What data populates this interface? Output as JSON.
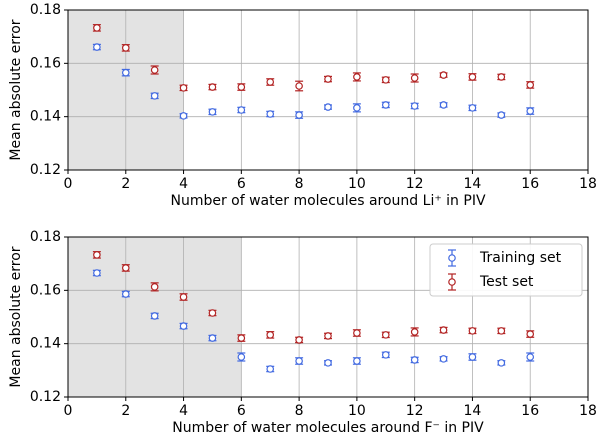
{
  "charts": [
    {
      "type": "scatter",
      "xlabel": "Number of water molecules around Li⁺ in PIV",
      "ylabel": "Mean absolute error",
      "xlim": [
        0,
        18
      ],
      "xticks": [
        0,
        2,
        4,
        6,
        8,
        10,
        12,
        14,
        16,
        18
      ],
      "ylim": [
        0.12,
        0.18
      ],
      "yticks": [
        0.12,
        0.14,
        0.16,
        0.18
      ],
      "grid": true,
      "shaded_xlim": [
        0,
        4
      ],
      "shade_color": "#e3e3e3",
      "x": [
        1,
        2,
        3,
        4,
        5,
        6,
        7,
        8,
        9,
        10,
        11,
        12,
        13,
        14,
        15,
        16
      ],
      "series": [
        {
          "color": "#4169e1",
          "values": [
            0.1661,
            0.1565,
            0.1478,
            0.1403,
            0.1418,
            0.1425,
            0.141,
            0.1406,
            0.1436,
            0.1433,
            0.1444,
            0.144,
            0.1444,
            0.1433,
            0.1406,
            0.1421
          ],
          "errors": [
            0.001,
            0.0012,
            0.001,
            0.0008,
            0.001,
            0.001,
            0.001,
            0.0012,
            0.0008,
            0.0015,
            0.001,
            0.001,
            0.0008,
            0.001,
            0.0008,
            0.0012
          ]
        },
        {
          "color": "#b22222",
          "values": [
            0.1733,
            0.1658,
            0.1575,
            0.1508,
            0.1511,
            0.1511,
            0.153,
            0.1515,
            0.1541,
            0.1549,
            0.1538,
            0.1545,
            0.1556,
            0.1549,
            0.1549,
            0.1519
          ],
          "errors": [
            0.0012,
            0.0012,
            0.0015,
            0.001,
            0.001,
            0.0012,
            0.0012,
            0.0018,
            0.001,
            0.0015,
            0.001,
            0.0015,
            0.0008,
            0.0012,
            0.001,
            0.0012
          ]
        }
      ]
    },
    {
      "type": "scatter",
      "xlabel": "Number of water molecules around F⁻ in PIV",
      "ylabel": "Mean absolute error",
      "xlim": [
        0,
        18
      ],
      "xticks": [
        0,
        2,
        4,
        6,
        8,
        10,
        12,
        14,
        16,
        18
      ],
      "ylim": [
        0.12,
        0.18
      ],
      "yticks": [
        0.12,
        0.14,
        0.16,
        0.18
      ],
      "grid": true,
      "shaded_xlim": [
        0,
        6
      ],
      "shade_color": "#e3e3e3",
      "legend": "upper right",
      "x": [
        1,
        2,
        3,
        4,
        5,
        6,
        7,
        8,
        9,
        10,
        11,
        12,
        13,
        14,
        15,
        16
      ],
      "series": [
        {
          "name": "Training set",
          "color": "#4169e1",
          "values": [
            0.1665,
            0.1586,
            0.1504,
            0.1466,
            0.1421,
            0.135,
            0.1305,
            0.1335,
            0.1328,
            0.1335,
            0.1358,
            0.1339,
            0.1343,
            0.135,
            0.1328,
            0.135
          ],
          "errors": [
            0.001,
            0.001,
            0.001,
            0.001,
            0.001,
            0.0015,
            0.001,
            0.0012,
            0.0008,
            0.0012,
            0.001,
            0.001,
            0.0008,
            0.0012,
            0.0008,
            0.0015
          ]
        },
        {
          "name": "Test set",
          "color": "#b22222",
          "values": [
            0.1733,
            0.1684,
            0.1613,
            0.1575,
            0.1515,
            0.1421,
            0.1433,
            0.1414,
            0.1429,
            0.144,
            0.1433,
            0.1444,
            0.1451,
            0.1448,
            0.1448,
            0.1436
          ],
          "errors": [
            0.0012,
            0.0012,
            0.0015,
            0.0012,
            0.001,
            0.0012,
            0.0012,
            0.001,
            0.001,
            0.0012,
            0.001,
            0.0015,
            0.001,
            0.001,
            0.001,
            0.0012
          ]
        }
      ]
    }
  ]
}
